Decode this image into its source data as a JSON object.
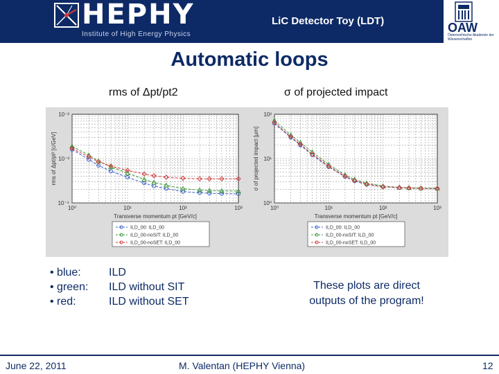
{
  "header": {
    "logo_text": "HEPHY",
    "logo_subtitle": "Institute of High Energy Physics",
    "title": "LiC Detector Toy (LDT)",
    "oaw_text": "OAW",
    "oaw_subtitle": "Österreichische Akademie der Wissenschaften"
  },
  "slide": {
    "title": "Automatic loops",
    "left_col_title": "rms of Δpt/pt2",
    "right_col_title": "σ of projected impact"
  },
  "legend_list": [
    {
      "bullet": "• blue:",
      "label": "ILD"
    },
    {
      "bullet": "• green:",
      "label": "ILD without SIT"
    },
    {
      "bullet": "• red:",
      "label": "ILD without SET"
    }
  ],
  "note": "These plots are direct outputs of the program!",
  "footer": {
    "date": "June 22, 2011",
    "author": "M. Valentan (HEPHY Vienna)",
    "page": "12"
  },
  "colors": {
    "header_bg": "#0d2a66",
    "text_blue": "#0d2a66",
    "series_blue": "#3a5fc8",
    "series_green": "#3a9a3a",
    "series_red": "#d23c3c"
  },
  "chart_data": [
    {
      "type": "line",
      "title": "",
      "xlabel": "Transverse momentum pt [GeV/c]",
      "ylabel": "rms of Δpt/pt² [c/GeV]",
      "x_scale": "log",
      "y_scale": "log",
      "xlim": [
        1,
        1000
      ],
      "ylim": [
        0.0001,
        0.01
      ],
      "grid": true,
      "legend_position": "bottom",
      "x_tick_labels": [
        "10⁰",
        "10¹",
        "10²",
        "10³"
      ],
      "y_tick_labels": [
        "10⁻⁴",
        "10⁻³",
        "10⁻²"
      ],
      "x": [
        1,
        2,
        3,
        5,
        10,
        20,
        30,
        50,
        100,
        200,
        300,
        500,
        1000
      ],
      "series": [
        {
          "name": "ILD_00: ILD_00",
          "color": "blue",
          "values": [
            0.0016,
            0.00095,
            0.0007,
            0.00052,
            0.00038,
            0.00028,
            0.00024,
            0.00021,
            0.00018,
            0.00017,
            0.000165,
            0.000162,
            0.00016
          ]
        },
        {
          "name": "ILD_00-noSIT: ILD_00",
          "color": "green",
          "values": [
            0.0019,
            0.0012,
            0.00088,
            0.00065,
            0.00047,
            0.00034,
            0.00029,
            0.00025,
            0.00021,
            0.000195,
            0.00019,
            0.000187,
            0.000185
          ]
        },
        {
          "name": "ILD_00-noSET: ILD_00",
          "color": "red",
          "values": [
            0.0017,
            0.0011,
            0.00085,
            0.00068,
            0.00054,
            0.00045,
            0.00041,
            0.00038,
            0.00036,
            0.00035,
            0.00035,
            0.00035,
            0.00035
          ]
        }
      ]
    },
    {
      "type": "line",
      "title": "",
      "xlabel": "Transverse momentum pt [GeV/c]",
      "ylabel": "σ of projected impact [μm]",
      "x_scale": "log",
      "y_scale": "log",
      "xlim": [
        1,
        1000
      ],
      "ylim": [
        1,
        100
      ],
      "grid": true,
      "legend_position": "bottom",
      "x_tick_labels": [
        "10⁰",
        "10¹",
        "10²",
        "10³"
      ],
      "y_tick_labels": [
        "10⁰",
        "10¹",
        "10²"
      ],
      "x": [
        1,
        2,
        3,
        5,
        10,
        20,
        30,
        50,
        100,
        200,
        300,
        500,
        1000
      ],
      "series": [
        {
          "name": "ILD_00: ILD_00",
          "color": "blue",
          "values": [
            62,
            30,
            20,
            12,
            6.5,
            3.9,
            3.1,
            2.6,
            2.3,
            2.2,
            2.15,
            2.12,
            2.1
          ]
        },
        {
          "name": "ILD_00-noSIT: ILD_00",
          "color": "green",
          "values": [
            72,
            34,
            23,
            14,
            7.3,
            4.3,
            3.4,
            2.8,
            2.4,
            2.25,
            2.2,
            2.17,
            2.15
          ]
        },
        {
          "name": "ILD_00-noSET: ILD_00",
          "color": "red",
          "values": [
            65,
            31,
            21,
            12.5,
            6.7,
            4.0,
            3.2,
            2.65,
            2.32,
            2.22,
            2.17,
            2.13,
            2.11
          ]
        }
      ]
    }
  ]
}
